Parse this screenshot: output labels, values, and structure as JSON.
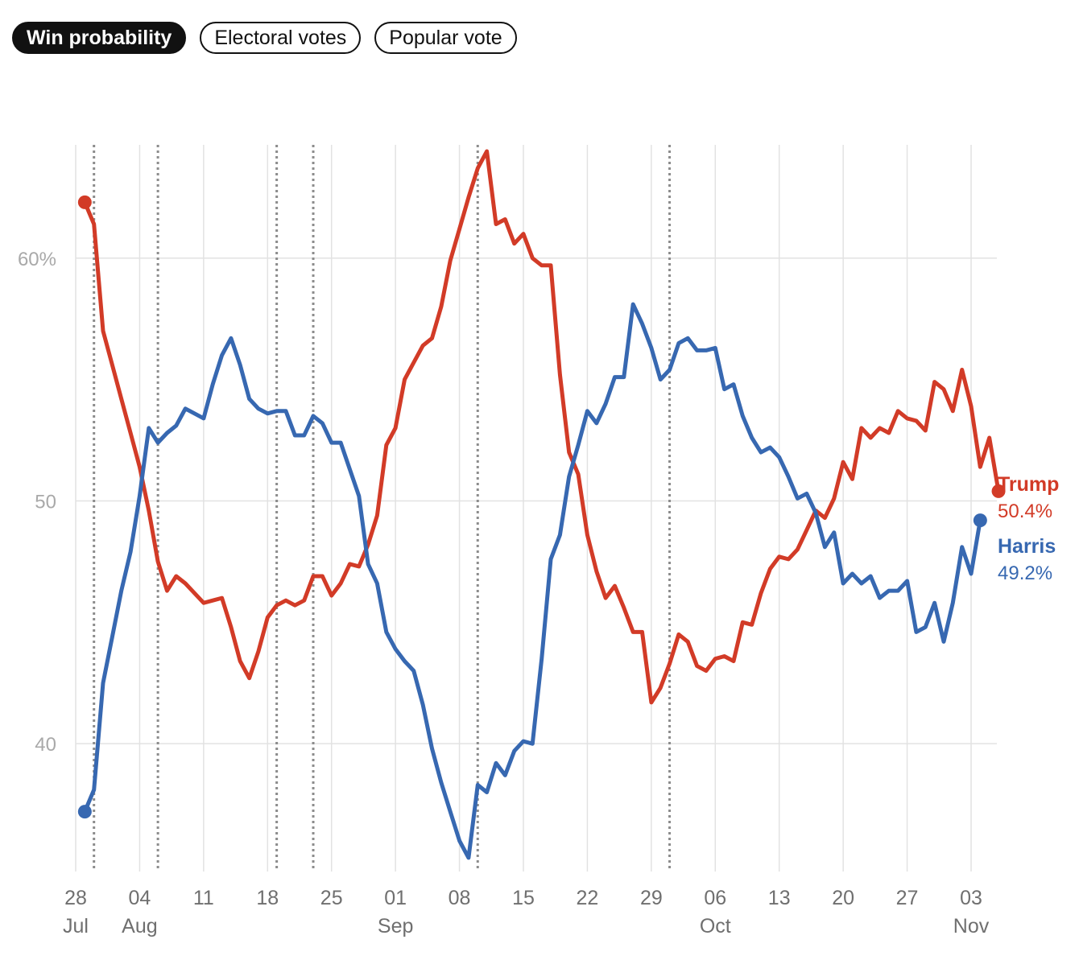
{
  "tabs": [
    {
      "label": "Win probability",
      "active": true
    },
    {
      "label": "Electoral votes",
      "active": false
    },
    {
      "label": "Popular vote",
      "active": false
    }
  ],
  "colors": {
    "trump": "#d23b27",
    "harris": "#3768b1"
  },
  "chart_data": {
    "type": "line",
    "title": "",
    "xlabel": "",
    "ylabel": "",
    "ylim": [
      35,
      64.5
    ],
    "y_ticks": [
      {
        "value": 60,
        "label": "60%"
      },
      {
        "value": 50,
        "label": "50"
      },
      {
        "value": 40,
        "label": "40"
      }
    ],
    "x_ticks": [
      {
        "date": "2024-07-28",
        "day": "28",
        "month": "Jul"
      },
      {
        "date": "2024-08-04",
        "day": "04",
        "month": "Aug"
      },
      {
        "date": "2024-08-11",
        "day": "11",
        "month": ""
      },
      {
        "date": "2024-08-18",
        "day": "18",
        "month": ""
      },
      {
        "date": "2024-08-25",
        "day": "25",
        "month": ""
      },
      {
        "date": "2024-09-01",
        "day": "01",
        "month": "Sep"
      },
      {
        "date": "2024-09-08",
        "day": "08",
        "month": ""
      },
      {
        "date": "2024-09-15",
        "day": "15",
        "month": ""
      },
      {
        "date": "2024-09-22",
        "day": "22",
        "month": ""
      },
      {
        "date": "2024-09-29",
        "day": "29",
        "month": ""
      },
      {
        "date": "2024-10-06",
        "day": "06",
        "month": "Oct"
      },
      {
        "date": "2024-10-13",
        "day": "13",
        "month": ""
      },
      {
        "date": "2024-10-20",
        "day": "20",
        "month": ""
      },
      {
        "date": "2024-10-27",
        "day": "27",
        "month": ""
      },
      {
        "date": "2024-11-03",
        "day": "03",
        "month": "Nov"
      }
    ],
    "x_range": [
      "2024-07-28",
      "2024-11-03"
    ],
    "event_dates": [
      "2024-07-30",
      "2024-08-06",
      "2024-08-19",
      "2024-08-23",
      "2024-09-10",
      "2024-10-01"
    ],
    "grid": true,
    "series": [
      {
        "name": "Trump",
        "color": "#d23b27",
        "final_label": "50.4%",
        "points": [
          [
            "2024-07-29",
            62.3
          ],
          [
            "2024-07-30",
            61.4
          ],
          [
            "2024-07-31",
            57
          ],
          [
            "2024-08-01",
            55.6
          ],
          [
            "2024-08-02",
            54.2
          ],
          [
            "2024-08-03",
            52.8
          ],
          [
            "2024-08-04",
            51.4
          ],
          [
            "2024-08-05",
            49.6
          ],
          [
            "2024-08-06",
            47.5
          ],
          [
            "2024-08-07",
            46.3
          ],
          [
            "2024-08-08",
            46.9
          ],
          [
            "2024-08-09",
            46.6
          ],
          [
            "2024-08-10",
            46.2
          ],
          [
            "2024-08-11",
            45.8
          ],
          [
            "2024-08-12",
            45.9
          ],
          [
            "2024-08-13",
            46.0
          ],
          [
            "2024-08-14",
            44.8
          ],
          [
            "2024-08-15",
            43.4
          ],
          [
            "2024-08-16",
            42.7
          ],
          [
            "2024-08-17",
            43.8
          ],
          [
            "2024-08-18",
            45.2
          ],
          [
            "2024-08-19",
            45.7
          ],
          [
            "2024-08-20",
            45.9
          ],
          [
            "2024-08-21",
            45.7
          ],
          [
            "2024-08-22",
            45.9
          ],
          [
            "2024-08-23",
            46.9
          ],
          [
            "2024-08-24",
            46.9
          ],
          [
            "2024-08-25",
            46.1
          ],
          [
            "2024-08-26",
            46.6
          ],
          [
            "2024-08-27",
            47.4
          ],
          [
            "2024-08-28",
            47.3
          ],
          [
            "2024-08-29",
            48.2
          ],
          [
            "2024-08-30",
            49.4
          ],
          [
            "2024-08-31",
            52.3
          ],
          [
            "2024-09-01",
            53
          ],
          [
            "2024-09-02",
            55
          ],
          [
            "2024-09-03",
            55.7
          ],
          [
            "2024-09-04",
            56.4
          ],
          [
            "2024-09-05",
            56.7
          ],
          [
            "2024-09-06",
            58
          ],
          [
            "2024-09-07",
            59.9
          ],
          [
            "2024-09-08",
            61.2
          ],
          [
            "2024-09-09",
            62.5
          ],
          [
            "2024-09-10",
            63.7
          ],
          [
            "2024-09-11",
            64.4
          ],
          [
            "2024-09-12",
            61.4
          ],
          [
            "2024-09-13",
            61.6
          ],
          [
            "2024-09-14",
            60.6
          ],
          [
            "2024-09-15",
            61
          ],
          [
            "2024-09-16",
            60
          ],
          [
            "2024-09-17",
            59.7
          ],
          [
            "2024-09-18",
            59.7
          ],
          [
            "2024-09-19",
            55.2
          ],
          [
            "2024-09-20",
            52
          ],
          [
            "2024-09-21",
            51.1
          ],
          [
            "2024-09-22",
            48.6
          ],
          [
            "2024-09-23",
            47.1
          ],
          [
            "2024-09-24",
            46
          ],
          [
            "2024-09-25",
            46.5
          ],
          [
            "2024-09-26",
            45.6
          ],
          [
            "2024-09-27",
            44.6
          ],
          [
            "2024-09-28",
            44.6
          ],
          [
            "2024-09-29",
            41.7
          ],
          [
            "2024-09-30",
            42.3
          ],
          [
            "2024-10-01",
            43.3
          ],
          [
            "2024-10-02",
            44.5
          ],
          [
            "2024-10-03",
            44.2
          ],
          [
            "2024-10-04",
            43.2
          ],
          [
            "2024-10-05",
            43
          ],
          [
            "2024-10-06",
            43.5
          ],
          [
            "2024-10-07",
            43.6
          ],
          [
            "2024-10-08",
            43.4
          ],
          [
            "2024-10-09",
            45
          ],
          [
            "2024-10-10",
            44.9
          ],
          [
            "2024-10-11",
            46.2
          ],
          [
            "2024-10-12",
            47.2
          ],
          [
            "2024-10-13",
            47.7
          ],
          [
            "2024-10-14",
            47.6
          ],
          [
            "2024-10-15",
            48
          ],
          [
            "2024-10-16",
            48.8
          ],
          [
            "2024-10-17",
            49.6
          ],
          [
            "2024-10-18",
            49.3
          ],
          [
            "2024-10-19",
            50.1
          ],
          [
            "2024-10-20",
            51.6
          ],
          [
            "2024-10-21",
            50.9
          ],
          [
            "2024-10-22",
            53
          ],
          [
            "2024-10-23",
            52.6
          ],
          [
            "2024-10-24",
            53
          ],
          [
            "2024-10-25",
            52.8
          ],
          [
            "2024-10-26",
            53.7
          ],
          [
            "2024-10-27",
            53.4
          ],
          [
            "2024-10-28",
            53.3
          ],
          [
            "2024-10-29",
            52.9
          ],
          [
            "2024-10-30",
            54.9
          ],
          [
            "2024-10-31",
            54.6
          ],
          [
            "2024-11-01",
            53.7
          ],
          [
            "2024-11-02",
            55.4
          ],
          [
            "2024-11-03",
            53.9
          ],
          [
            "2024-11-04",
            51.4
          ],
          [
            "2024-11-05",
            52.6
          ],
          [
            "2024-11-06",
            50.4
          ]
        ]
      },
      {
        "name": "Harris",
        "color": "#3768b1",
        "final_label": "49.2%",
        "points": [
          [
            "2024-07-29",
            37.2
          ],
          [
            "2024-07-30",
            38.1
          ],
          [
            "2024-07-31",
            42.5
          ],
          [
            "2024-08-01",
            44.4
          ],
          [
            "2024-08-02",
            46.3
          ],
          [
            "2024-08-03",
            47.9
          ],
          [
            "2024-08-04",
            50.2
          ],
          [
            "2024-08-05",
            53
          ],
          [
            "2024-08-06",
            52.4
          ],
          [
            "2024-08-07",
            52.8
          ],
          [
            "2024-08-08",
            53.1
          ],
          [
            "2024-08-09",
            53.8
          ],
          [
            "2024-08-10",
            53.6
          ],
          [
            "2024-08-11",
            53.4
          ],
          [
            "2024-08-12",
            54.8
          ],
          [
            "2024-08-13",
            56
          ],
          [
            "2024-08-14",
            56.7
          ],
          [
            "2024-08-15",
            55.6
          ],
          [
            "2024-08-16",
            54.2
          ],
          [
            "2024-08-17",
            53.8
          ],
          [
            "2024-08-18",
            53.6
          ],
          [
            "2024-08-19",
            53.7
          ],
          [
            "2024-08-20",
            53.7
          ],
          [
            "2024-08-21",
            52.7
          ],
          [
            "2024-08-22",
            52.7
          ],
          [
            "2024-08-23",
            53.5
          ],
          [
            "2024-08-24",
            53.2
          ],
          [
            "2024-08-25",
            52.4
          ],
          [
            "2024-08-26",
            52.4
          ],
          [
            "2024-08-27",
            51.3
          ],
          [
            "2024-08-28",
            50.2
          ],
          [
            "2024-08-29",
            47.4
          ],
          [
            "2024-08-30",
            46.6
          ],
          [
            "2024-08-31",
            44.6
          ],
          [
            "2024-09-01",
            43.9
          ],
          [
            "2024-09-02",
            43.4
          ],
          [
            "2024-09-03",
            43
          ],
          [
            "2024-09-04",
            41.6
          ],
          [
            "2024-09-05",
            39.8
          ],
          [
            "2024-09-06",
            38.4
          ],
          [
            "2024-09-07",
            37.2
          ],
          [
            "2024-09-08",
            36.0
          ],
          [
            "2024-09-09",
            35.3
          ],
          [
            "2024-09-10",
            38.3
          ],
          [
            "2024-09-11",
            38
          ],
          [
            "2024-09-12",
            39.2
          ],
          [
            "2024-09-13",
            38.7
          ],
          [
            "2024-09-14",
            39.7
          ],
          [
            "2024-09-15",
            40.1
          ],
          [
            "2024-09-16",
            40
          ],
          [
            "2024-09-17",
            43.5
          ],
          [
            "2024-09-18",
            47.6
          ],
          [
            "2024-09-19",
            48.6
          ],
          [
            "2024-09-20",
            51
          ],
          [
            "2024-09-21",
            52.3
          ],
          [
            "2024-09-22",
            53.7
          ],
          [
            "2024-09-23",
            53.2
          ],
          [
            "2024-09-24",
            54
          ],
          [
            "2024-09-25",
            55.1
          ],
          [
            "2024-09-26",
            55.1
          ],
          [
            "2024-09-27",
            58.1
          ],
          [
            "2024-09-28",
            57.3
          ],
          [
            "2024-09-29",
            56.3
          ],
          [
            "2024-09-30",
            55
          ],
          [
            "2024-10-01",
            55.4
          ],
          [
            "2024-10-02",
            56.5
          ],
          [
            "2024-10-03",
            56.7
          ],
          [
            "2024-10-04",
            56.2
          ],
          [
            "2024-10-05",
            56.2
          ],
          [
            "2024-10-06",
            56.3
          ],
          [
            "2024-10-07",
            54.6
          ],
          [
            "2024-10-08",
            54.8
          ],
          [
            "2024-10-09",
            53.5
          ],
          [
            "2024-10-10",
            52.6
          ],
          [
            "2024-10-11",
            52
          ],
          [
            "2024-10-12",
            52.2
          ],
          [
            "2024-10-13",
            51.8
          ],
          [
            "2024-10-14",
            51
          ],
          [
            "2024-10-15",
            50.1
          ],
          [
            "2024-10-16",
            50.3
          ],
          [
            "2024-10-17",
            49.5
          ],
          [
            "2024-10-18",
            48.1
          ],
          [
            "2024-10-19",
            48.7
          ],
          [
            "2024-10-20",
            46.6
          ],
          [
            "2024-10-21",
            47
          ],
          [
            "2024-10-22",
            46.6
          ],
          [
            "2024-10-23",
            46.9
          ],
          [
            "2024-10-24",
            46
          ],
          [
            "2024-10-25",
            46.3
          ],
          [
            "2024-10-26",
            46.3
          ],
          [
            "2024-10-27",
            46.7
          ],
          [
            "2024-10-28",
            44.6
          ],
          [
            "2024-10-29",
            44.8
          ],
          [
            "2024-10-30",
            45.8
          ],
          [
            "2024-10-31",
            44.2
          ],
          [
            "2024-11-01",
            45.8
          ],
          [
            "2024-11-02",
            48.1
          ],
          [
            "2024-11-03",
            47
          ],
          [
            "2024-11-04",
            49.2
          ]
        ]
      }
    ]
  }
}
